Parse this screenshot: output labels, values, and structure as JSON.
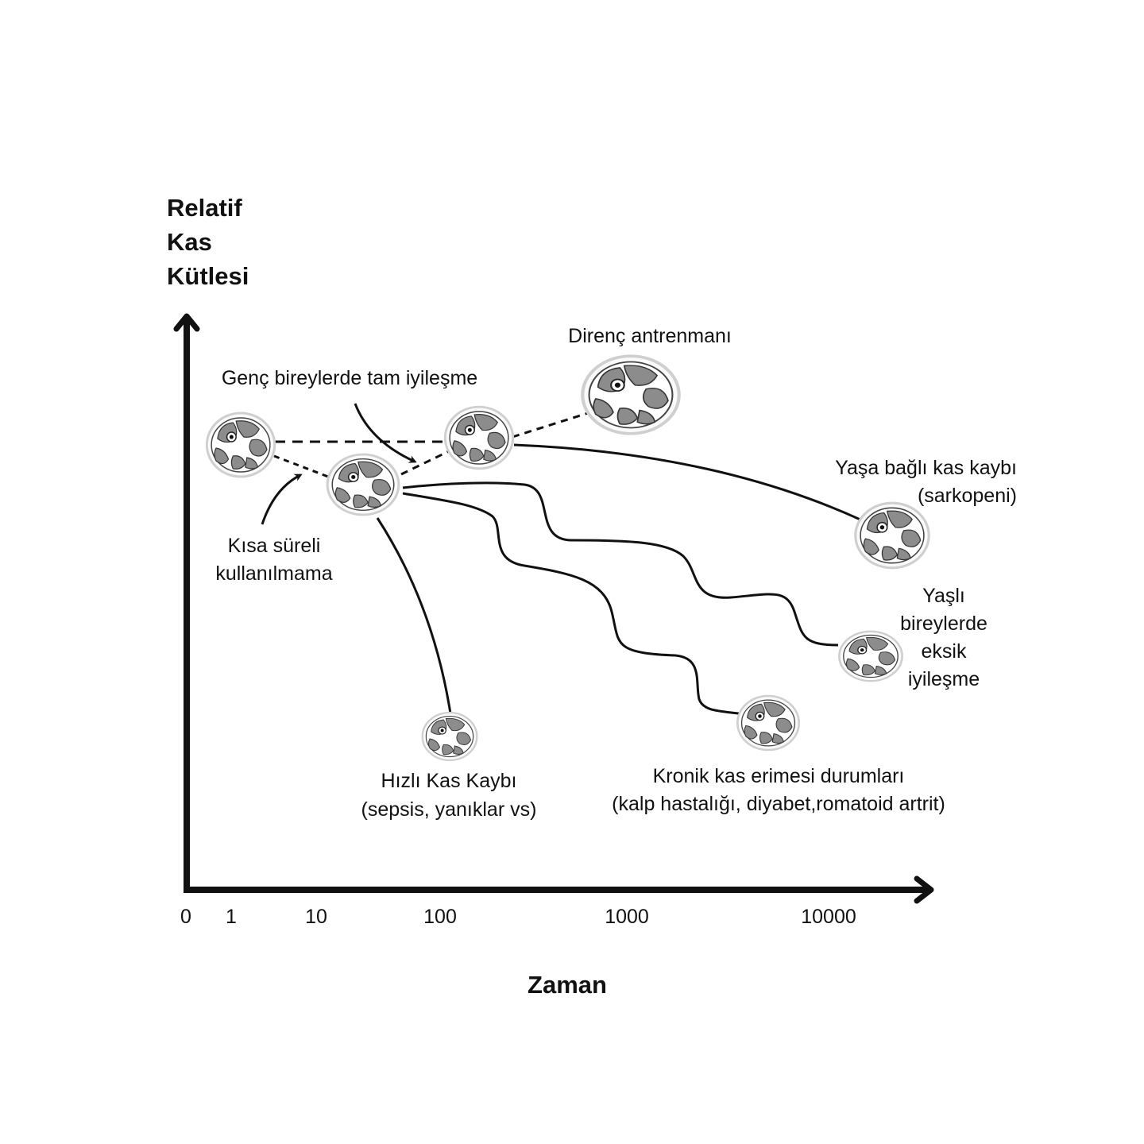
{
  "axes": {
    "y_label": [
      "Relatif",
      "Kas",
      "Kütlesi"
    ],
    "x_label": "Zaman",
    "x_ticks": [
      "0",
      "1",
      "10",
      "100",
      "1000",
      "10000"
    ]
  },
  "labels": {
    "resistance": "Direnç antrenmanı",
    "young_recovery": "Genç bireylerde tam iyileşme",
    "short_disuse": [
      "Kısa süreli",
      "kullanılmama"
    ],
    "sarcopenia": [
      "Yaşa bağlı kas kaybı",
      "(sarkopeni)"
    ],
    "elderly_recovery": [
      "Yaşlı",
      "bireylerde",
      "eksik",
      "iyileşme"
    ],
    "rapid_loss": [
      "Hızlı Kas Kaybı",
      "(sepsis, yanıklar vs)"
    ],
    "chronic": [
      "Kronik kas erimesi durumları",
      "(kalp hastalığı, diyabet,romatoid artrit)"
    ]
  },
  "icons": [
    "muscle-cross-section-icon"
  ],
  "colors": {
    "line": "#111111",
    "muscle": "#8c8c8c",
    "muscle_border": "#d9d9d9"
  }
}
